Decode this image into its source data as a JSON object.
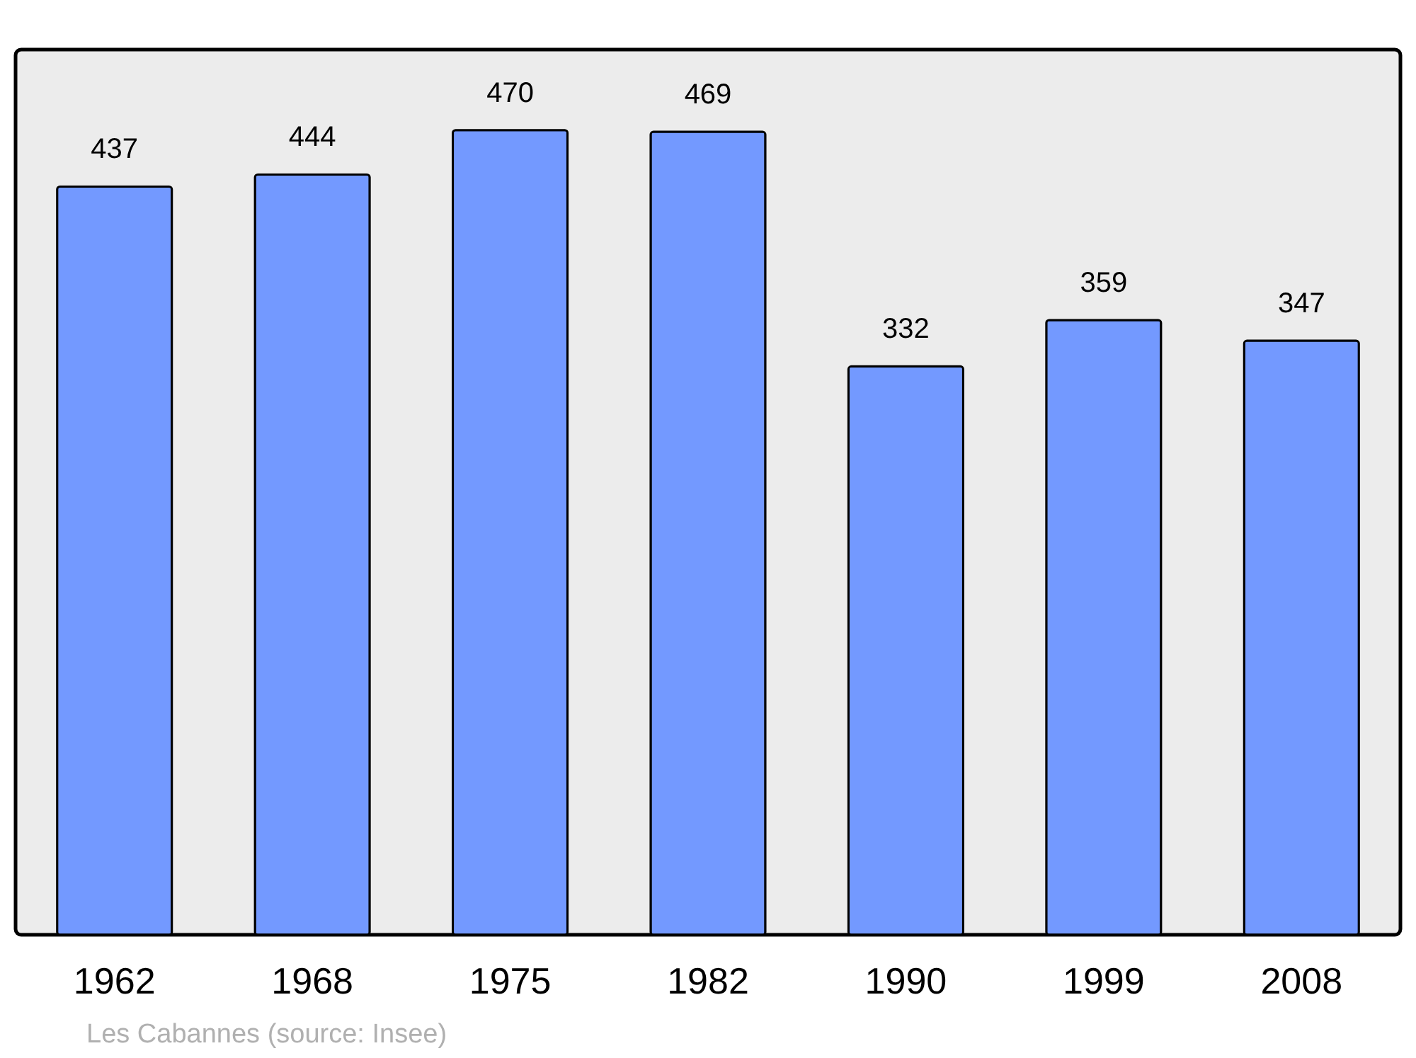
{
  "chart_data": {
    "type": "bar",
    "categories": [
      "1962",
      "1968",
      "1975",
      "1982",
      "1990",
      "1999",
      "2008"
    ],
    "values": [
      437,
      444,
      470,
      469,
      332,
      359,
      347
    ],
    "color": "#7399ff",
    "ylim": [
      0,
      517
    ],
    "data_labels": true,
    "annotations": [
      "Les Cabannes    (source: Insee)"
    ]
  }
}
